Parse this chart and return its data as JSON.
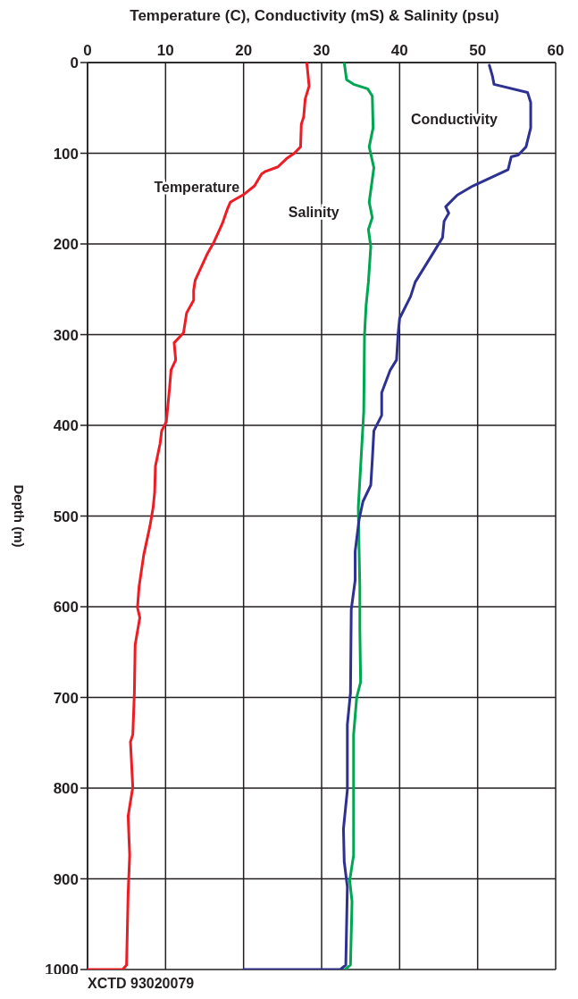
{
  "chart_data": {
    "type": "line",
    "xlabel": "Temperature (C), Conductivity (mS) & Salinity (psu)",
    "ylabel": "Depth (m)",
    "xlim": [
      0,
      60
    ],
    "xticks": [
      0,
      10,
      20,
      30,
      40,
      50,
      60
    ],
    "ylim": [
      1000,
      0
    ],
    "yticks": [
      0,
      100,
      200,
      300,
      400,
      500,
      600,
      700,
      800,
      900,
      1000
    ],
    "grid": true,
    "marker": "none",
    "line_style": "solid",
    "annotations": [
      "XCTD 93020079"
    ],
    "series": [
      {
        "name": "Temperature",
        "color": "#ee1c25",
        "x": [
          28.1,
          28.4,
          27.9,
          27.7,
          27.4,
          27.3,
          26.5,
          25.5,
          24.4,
          22.8,
          22.3,
          21.4,
          20.1,
          18.3,
          17.9,
          17.3,
          16.2,
          15.4,
          13.8,
          13.6,
          13.6,
          12.7,
          12.3,
          11.1,
          11.3,
          10.7,
          10.5,
          10.1,
          9.5,
          9.3,
          8.7,
          8.6,
          8.4,
          8.0,
          7.2,
          6.6,
          6.4,
          6.7,
          6.1,
          6.0,
          5.8,
          5.5,
          5.8,
          5.2,
          5.4,
          5.2,
          5.0,
          4.5,
          0
        ],
        "values": [
          0,
          26,
          40,
          60,
          68,
          93,
          100,
          106,
          115,
          120,
          123,
          136,
          145,
          154,
          162,
          177,
          198,
          210,
          240,
          251,
          262,
          276,
          298,
          309,
          328,
          339,
          360,
          396,
          406,
          420,
          445,
          474,
          491,
          511,
          543,
          578,
          601,
          612,
          642,
          695,
          741,
          749,
          799,
          831,
          874,
          916,
          995,
          1000,
          1000
        ]
      },
      {
        "name": "Salinity",
        "color": "#00a651",
        "x": [
          32.9,
          33.2,
          34.1,
          35.9,
          36.5,
          36.6,
          36.1,
          36.7,
          36.1,
          36.5,
          36.0,
          36.3,
          36.0,
          35.7,
          35.5,
          35.4,
          34.7,
          34.9,
          34.9,
          35.0,
          34.5,
          34.1,
          34.1,
          33.6,
          33.9,
          33.7,
          33.0
        ],
        "values": [
          0,
          19,
          24,
          29,
          37,
          72,
          93,
          116,
          154,
          171,
          184,
          203,
          242,
          268,
          300,
          385,
          491,
          578,
          624,
          683,
          700,
          741,
          874,
          902,
          925,
          995,
          1000
        ]
      },
      {
        "name": "Conductivity",
        "color": "#2e3192",
        "x": [
          51.5,
          51.9,
          52.1,
          56.4,
          56.8,
          56.8,
          56.2,
          55.2,
          54.3,
          53.9,
          49.4,
          47.4,
          45.9,
          46.3,
          45.7,
          45.5,
          44.3,
          42.0,
          41.4,
          40.0,
          39.8,
          39.6,
          38.8,
          37.7,
          37.7,
          36.7,
          36.5,
          36.3,
          35.3,
          34.8,
          34.3,
          34.3,
          33.8,
          33.7,
          33.3,
          33.3,
          32.8,
          32.9,
          33.3,
          33.1,
          32.4,
          20.0
        ],
        "values": [
          3,
          15,
          24,
          33,
          44,
          72,
          93,
          102,
          104,
          118,
          136,
          146,
          159,
          166,
          175,
          193,
          210,
          242,
          258,
          282,
          300,
          328,
          339,
          364,
          389,
          406,
          438,
          466,
          484,
          504,
          539,
          571,
          603,
          695,
          730,
          802,
          845,
          881,
          909,
          995,
          1000,
          1000
        ]
      }
    ]
  }
}
